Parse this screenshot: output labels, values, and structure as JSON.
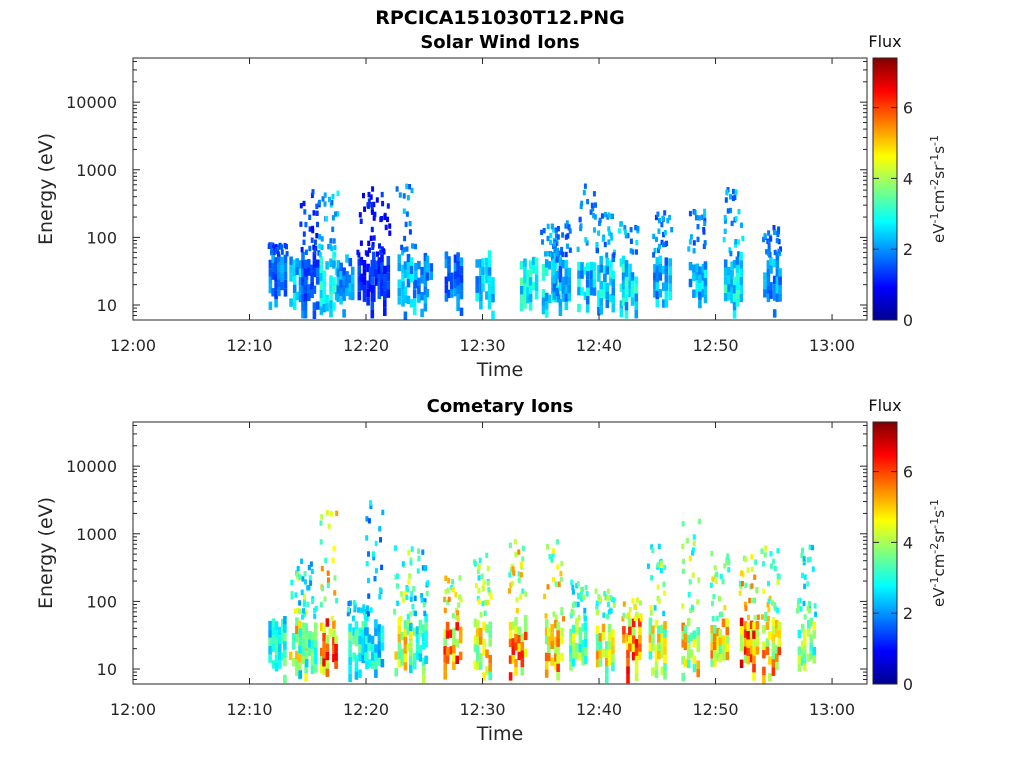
{
  "figure": {
    "title": "RPCICA151030T12.PNG"
  },
  "chart_data": [
    {
      "type": "heatmap",
      "title": "Solar Wind Ions",
      "xlabel": "Time",
      "ylabel": "Energy (eV)",
      "xlim": [
        "12:00",
        "13:03"
      ],
      "ylim": [
        6,
        45000
      ],
      "yscale": "log",
      "xticks": [
        "12:00",
        "12:10",
        "12:20",
        "12:30",
        "12:40",
        "12:50",
        "13:00"
      ],
      "yticks": [
        "10",
        "100",
        "1000",
        "10000"
      ],
      "grid": false,
      "colorbar": {
        "title": "Flux",
        "unit": "eV-1cm-2sr-1s-1",
        "range": [
          0,
          7.4
        ],
        "ticks": [
          "0",
          "2",
          "4",
          "6"
        ],
        "colormap": "jet"
      },
      "bursts": [
        {
          "t": 12.4,
          "level": 2.3,
          "peak_e": 75
        },
        {
          "t": 14.2,
          "level": 2.8,
          "peak_e": 40
        },
        {
          "t": 15.2,
          "level": 2.0,
          "peak_e": 450
        },
        {
          "t": 16.8,
          "level": 3.3,
          "peak_e": 420
        },
        {
          "t": 18.2,
          "level": 2.5,
          "peak_e": 55
        },
        {
          "t": 20.0,
          "level": 1.6,
          "peak_e": 500
        },
        {
          "t": 21.2,
          "level": 1.7,
          "peak_e": 420
        },
        {
          "t": 23.5,
          "level": 2.9,
          "peak_e": 560
        },
        {
          "t": 24.9,
          "level": 2.4,
          "peak_e": 40
        },
        {
          "t": 27.5,
          "level": 2.2,
          "peak_e": 45
        },
        {
          "t": 30.2,
          "level": 2.9,
          "peak_e": 40
        },
        {
          "t": 34.0,
          "level": 3.5,
          "peak_e": 45
        },
        {
          "t": 35.9,
          "level": 3.2,
          "peak_e": 140
        },
        {
          "t": 36.8,
          "level": 2.6,
          "peak_e": 160
        },
        {
          "t": 38.9,
          "level": 3.1,
          "peak_e": 550
        },
        {
          "t": 40.6,
          "level": 3.1,
          "peak_e": 200
        },
        {
          "t": 42.5,
          "level": 3.3,
          "peak_e": 170
        },
        {
          "t": 45.4,
          "level": 2.8,
          "peak_e": 220
        },
        {
          "t": 48.5,
          "level": 2.9,
          "peak_e": 240
        },
        {
          "t": 51.5,
          "level": 3.3,
          "peak_e": 470
        },
        {
          "t": 54.9,
          "level": 2.6,
          "peak_e": 130
        }
      ]
    },
    {
      "type": "heatmap",
      "title": "Cometary Ions",
      "xlabel": "Time",
      "ylabel": "Energy (eV)",
      "xlim": [
        "12:00",
        "13:03"
      ],
      "ylim": [
        6,
        45000
      ],
      "yscale": "log",
      "xticks": [
        "12:00",
        "12:10",
        "12:20",
        "12:30",
        "12:40",
        "12:50",
        "13:00"
      ],
      "yticks": [
        "10",
        "100",
        "1000",
        "10000"
      ],
      "grid": false,
      "colorbar": {
        "title": "Flux",
        "unit": "eV-1cm-2sr-1s-1",
        "range": [
          0,
          7.4
        ],
        "ticks": [
          "0",
          "2",
          "4",
          "6"
        ],
        "colormap": "jet"
      },
      "bursts": [
        {
          "t": 12.4,
          "level": 3.8,
          "peak_e": 50
        },
        {
          "t": 14.2,
          "level": 5.6,
          "peak_e": 250
        },
        {
          "t": 15.0,
          "level": 3.9,
          "peak_e": 400
        },
        {
          "t": 16.8,
          "level": 6.6,
          "peak_e": 1900
        },
        {
          "t": 19.3,
          "level": 3.8,
          "peak_e": 90
        },
        {
          "t": 20.7,
          "level": 3.4,
          "peak_e": 3200
        },
        {
          "t": 23.2,
          "level": 5.5,
          "peak_e": 600
        },
        {
          "t": 24.5,
          "level": 4.2,
          "peak_e": 620
        },
        {
          "t": 27.4,
          "level": 6.7,
          "peak_e": 220
        },
        {
          "t": 30.0,
          "level": 5.7,
          "peak_e": 500
        },
        {
          "t": 33.0,
          "level": 6.5,
          "peak_e": 700
        },
        {
          "t": 36.1,
          "level": 6.6,
          "peak_e": 700
        },
        {
          "t": 38.2,
          "level": 4.8,
          "peak_e": 180
        },
        {
          "t": 40.5,
          "level": 5.6,
          "peak_e": 130
        },
        {
          "t": 42.8,
          "level": 6.8,
          "peak_e": 100
        },
        {
          "t": 45.0,
          "level": 5.4,
          "peak_e": 600
        },
        {
          "t": 47.8,
          "level": 5.7,
          "peak_e": 1800
        },
        {
          "t": 50.3,
          "level": 5.8,
          "peak_e": 550
        },
        {
          "t": 52.9,
          "level": 6.8,
          "peak_e": 450
        },
        {
          "t": 54.8,
          "level": 6.3,
          "peak_e": 600
        },
        {
          "t": 57.8,
          "level": 4.6,
          "peak_e": 600
        }
      ]
    }
  ]
}
